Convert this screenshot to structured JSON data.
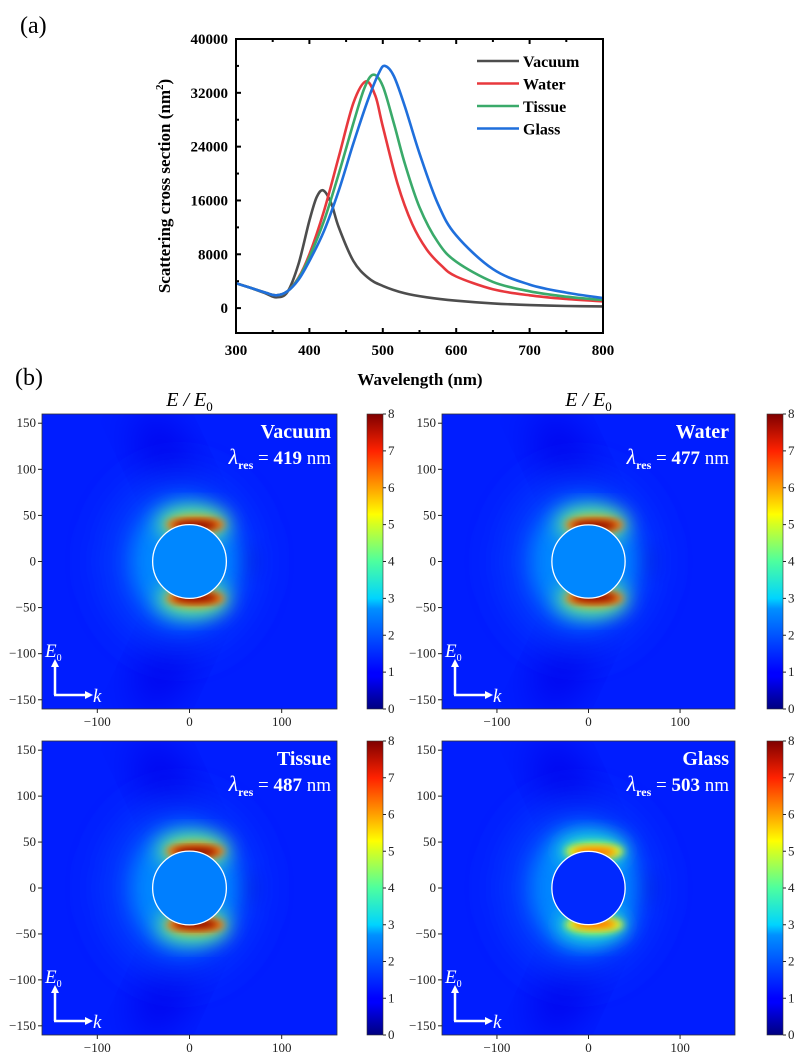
{
  "panel_labels": {
    "a": "(a)",
    "b": "(b)"
  },
  "chart_data": [
    {
      "type": "line",
      "title": "",
      "xlabel": "Wavelength (nm)",
      "ylabel": "Scattering cross section (nm",
      "ylabel_sup": "2",
      "ylabel_close": ")",
      "xlim": [
        300,
        800
      ],
      "ylim": [
        -3700,
        40000
      ],
      "xticks": [
        300,
        400,
        500,
        600,
        700,
        800
      ],
      "xtick_labels": [
        "300",
        "400",
        "500",
        "600",
        "700",
        "800"
      ],
      "yticks": [
        0,
        8000,
        16000,
        24000,
        32000,
        40000
      ],
      "ytick_labels": [
        "0",
        "8000",
        "16000",
        "24000",
        "32000",
        "40000"
      ],
      "grid": false,
      "legend_position": "top-right",
      "series": [
        {
          "name": "Vacuum",
          "color": "#4d4d4d",
          "x": [
            300,
            320,
            340,
            355,
            370,
            385,
            400,
            410,
            419,
            430,
            440,
            460,
            480,
            500,
            530,
            560,
            600,
            650,
            700,
            750,
            800
          ],
          "y": [
            3700,
            3000,
            2200,
            1600,
            2400,
            6500,
            13000,
            16500,
            17500,
            15500,
            12000,
            7000,
            4500,
            3300,
            2200,
            1600,
            1100,
            700,
            450,
            320,
            250
          ]
        },
        {
          "name": "Water",
          "color": "#e8383d",
          "x": [
            300,
            320,
            340,
            355,
            370,
            385,
            400,
            420,
            440,
            460,
            477,
            490,
            500,
            520,
            540,
            560,
            580,
            600,
            650,
            700,
            750,
            800
          ],
          "y": [
            3700,
            3000,
            2300,
            1900,
            2500,
            4500,
            8000,
            14500,
            22500,
            30500,
            33700,
            31500,
            27000,
            18500,
            12500,
            8700,
            6300,
            4700,
            2800,
            1900,
            1350,
            1000
          ]
        },
        {
          "name": "Tissue",
          "color": "#3aaa6a",
          "x": [
            300,
            320,
            340,
            355,
            370,
            385,
            400,
            420,
            440,
            460,
            475,
            487,
            500,
            515,
            530,
            550,
            575,
            600,
            650,
            700,
            750,
            800
          ],
          "y": [
            3700,
            3000,
            2300,
            1900,
            2500,
            4400,
            7600,
            13000,
            20000,
            27500,
            32700,
            34700,
            33000,
            27500,
            21500,
            15000,
            9800,
            6900,
            3900,
            2500,
            1700,
            1200
          ]
        },
        {
          "name": "Glass",
          "color": "#1f6fdc",
          "x": [
            300,
            320,
            340,
            355,
            370,
            385,
            400,
            420,
            440,
            460,
            480,
            495,
            503,
            515,
            530,
            550,
            575,
            600,
            650,
            700,
            750,
            800
          ],
          "y": [
            3700,
            3000,
            2300,
            1900,
            2500,
            4200,
            7000,
            11500,
            17500,
            24500,
            31000,
            35000,
            36000,
            34500,
            30000,
            23000,
            15500,
            10800,
            5800,
            3500,
            2300,
            1500
          ]
        }
      ]
    },
    {
      "type": "heatmap",
      "title": "E / E0",
      "xlim": [
        -160,
        160
      ],
      "ylim": [
        -160,
        160
      ],
      "xticks": [
        -100,
        0,
        100
      ],
      "yticks": [
        -150,
        -100,
        -50,
        0,
        50,
        100,
        150
      ],
      "tick_labels_x": [
        "−100",
        "0",
        "100"
      ],
      "tick_labels_y": [
        "150",
        "100",
        "50",
        "0",
        "−50",
        "−100",
        "−150"
      ],
      "colorbar": {
        "range": [
          0,
          8
        ],
        "ticks": [
          "0",
          "1",
          "2",
          "3",
          "4",
          "5",
          "6",
          "7",
          "8"
        ],
        "colormap": "jet"
      },
      "sphere_radius_nm": 40,
      "annotation_axes": {
        "vertical": "E0",
        "horizontal": "k"
      },
      "maps": [
        {
          "medium": "Vacuum",
          "lambda_res_nm": "419",
          "lambda_unit": "nm",
          "max_field": 8,
          "interior_field": 2.6,
          "show_title": true
        },
        {
          "medium": "Water",
          "lambda_res_nm": "477",
          "lambda_unit": "nm",
          "max_field": 8,
          "interior_field": 2.6,
          "show_title": true
        },
        {
          "medium": "Tissue",
          "lambda_res_nm": "487",
          "lambda_unit": "nm",
          "max_field": 8,
          "interior_field": 2.5,
          "show_title": false
        },
        {
          "medium": "Glass",
          "lambda_res_nm": "503",
          "lambda_unit": "nm",
          "max_field": 6.5,
          "interior_field": 1.4,
          "show_title": false
        }
      ]
    }
  ]
}
